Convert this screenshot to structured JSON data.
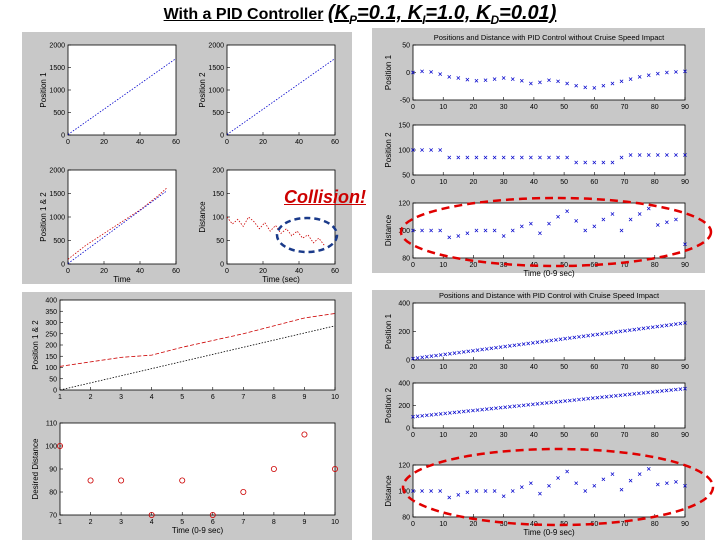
{
  "title": {
    "main": "With a PID Controller",
    "gains_open": "(K",
    "kp_sub": "P",
    "kp_val": "=0.1, K",
    "ki_sub": "I",
    "ki_val": "=1.0, K",
    "kd_sub": "D",
    "kd_val": "=0.01)"
  },
  "callout": {
    "text": "Collision!",
    "color": "#cc0000"
  },
  "colors": {
    "panel_bg": "#c8c8c8",
    "plot_bg": "#ffffff",
    "red": "#cc0000",
    "blue": "#0000cc",
    "highlight_red": "#e00000",
    "highlight_blue": "#1a3a8a"
  },
  "chart_data": [
    {
      "id": "tl1",
      "type": "line",
      "title": "",
      "xlabel": "",
      "ylabel": "Position 1",
      "xlim": [
        0,
        60
      ],
      "ylim": [
        0,
        2000
      ],
      "xticks": [
        0,
        20,
        40,
        60
      ],
      "yticks": [
        0,
        500,
        1000,
        1500,
        2000
      ],
      "series": [
        {
          "color": "blue",
          "style": "dotted",
          "x": [
            0,
            60
          ],
          "y": [
            10,
            1700
          ]
        }
      ]
    },
    {
      "id": "tl2",
      "type": "line",
      "title": "",
      "xlabel": "",
      "ylabel": "Position 2",
      "xlim": [
        0,
        60
      ],
      "ylim": [
        0,
        2000
      ],
      "xticks": [
        0,
        20,
        40,
        60
      ],
      "yticks": [
        0,
        500,
        1000,
        1500,
        2000
      ],
      "series": [
        {
          "color": "blue",
          "style": "dotted",
          "x": [
            0,
            60
          ],
          "y": [
            10,
            1700
          ]
        }
      ]
    },
    {
      "id": "tl3",
      "type": "line",
      "title": "",
      "xlabel": "Time",
      "ylabel": "Position 1 & 2",
      "xlim": [
        0,
        60
      ],
      "ylim": [
        0,
        2000
      ],
      "xticks": [
        0,
        20,
        40,
        60
      ],
      "yticks": [
        0,
        500,
        1000,
        1500,
        2000
      ],
      "series": [
        {
          "color": "red",
          "style": "dotted",
          "x": [
            0,
            10,
            20,
            30,
            40,
            50,
            55
          ],
          "y": [
            100,
            400,
            650,
            900,
            1150,
            1450,
            1620
          ]
        },
        {
          "color": "blue",
          "style": "dotted",
          "x": [
            0,
            55
          ],
          "y": [
            10,
            1560
          ]
        }
      ]
    },
    {
      "id": "tl4",
      "type": "line",
      "title": "",
      "xlabel": "Time (sec)",
      "ylabel": "Distance",
      "xlim": [
        0,
        60
      ],
      "ylim": [
        0,
        200
      ],
      "xticks": [
        0,
        20,
        40,
        60
      ],
      "yticks": [
        0,
        50,
        100,
        150,
        200
      ],
      "series": [
        {
          "color": "red",
          "style": "dotted",
          "x": [
            0,
            3,
            6,
            9,
            12,
            15,
            18,
            21,
            24,
            27,
            30,
            33,
            36,
            39,
            42,
            45,
            48,
            51,
            54
          ],
          "y": [
            100,
            85,
            95,
            80,
            100,
            90,
            75,
            88,
            70,
            82,
            65,
            75,
            60,
            70,
            55,
            62,
            45,
            55,
            40
          ]
        }
      ]
    },
    {
      "id": "tr1",
      "type": "scatter",
      "title": "Positions and Distance with PID Control without Cruise Speed Impact",
      "xlabel": "",
      "ylabel": "Position 1",
      "xlim": [
        0,
        90
      ],
      "ylim": [
        -50,
        50
      ],
      "xticks": [
        0,
        10,
        20,
        30,
        40,
        50,
        60,
        70,
        80,
        90
      ],
      "yticks": [
        -50,
        0,
        50
      ],
      "series": [
        {
          "color": "blue",
          "marker": "x",
          "x": [
            0,
            3,
            6,
            9,
            12,
            15,
            18,
            21,
            24,
            27,
            30,
            33,
            36,
            39,
            42,
            45,
            48,
            51,
            54,
            57,
            60,
            63,
            66,
            69,
            72,
            75,
            78,
            81,
            84,
            87,
            90
          ],
          "y": [
            0,
            2,
            1,
            -3,
            -8,
            -10,
            -13,
            -15,
            -14,
            -12,
            -10,
            -12,
            -15,
            -20,
            -18,
            -14,
            -16,
            -20,
            -24,
            -27,
            -28,
            -24,
            -20,
            -16,
            -12,
            -8,
            -5,
            -2,
            0,
            1,
            2
          ]
        }
      ]
    },
    {
      "id": "tr2",
      "type": "scatter",
      "title": "",
      "xlabel": "",
      "ylabel": "Position 2",
      "xlim": [
        0,
        90
      ],
      "ylim": [
        50,
        150
      ],
      "xticks": [
        0,
        10,
        20,
        30,
        40,
        50,
        60,
        70,
        80,
        90
      ],
      "yticks": [
        50,
        100,
        150
      ],
      "series": [
        {
          "color": "blue",
          "marker": "x",
          "x": [
            0,
            3,
            6,
            9,
            12,
            15,
            18,
            21,
            24,
            27,
            30,
            33,
            36,
            39,
            42,
            45,
            48,
            51,
            54,
            57,
            60,
            63,
            66,
            69,
            72,
            75,
            78,
            81,
            84,
            87,
            90
          ],
          "y": [
            100,
            100,
            100,
            100,
            85,
            85,
            85,
            85,
            85,
            85,
            85,
            85,
            85,
            85,
            85,
            85,
            85,
            85,
            75,
            75,
            75,
            75,
            75,
            85,
            90,
            90,
            90,
            90,
            90,
            90,
            90
          ]
        }
      ]
    },
    {
      "id": "tr3",
      "type": "scatter",
      "title": "",
      "xlabel": "Time (0-9 sec)",
      "ylabel": "Distance",
      "xlim": [
        0,
        90
      ],
      "ylim": [
        80,
        120
      ],
      "xticks": [
        0,
        10,
        20,
        30,
        40,
        50,
        60,
        70,
        80,
        90
      ],
      "yticks": [
        80,
        100,
        120
      ],
      "series": [
        {
          "color": "blue",
          "marker": "x",
          "x": [
            0,
            3,
            6,
            9,
            12,
            15,
            18,
            21,
            24,
            27,
            30,
            33,
            36,
            39,
            42,
            45,
            48,
            51,
            54,
            57,
            60,
            63,
            66,
            69,
            72,
            75,
            78,
            81,
            84,
            87,
            90
          ],
          "y": [
            100,
            100,
            100,
            100,
            95,
            96,
            98,
            100,
            100,
            100,
            96,
            100,
            103,
            105,
            98,
            105,
            110,
            114,
            107,
            100,
            103,
            108,
            112,
            100,
            108,
            112,
            116,
            104,
            106,
            108,
            90
          ]
        }
      ]
    },
    {
      "id": "bl1",
      "type": "line",
      "title": "",
      "xlabel": "",
      "ylabel": "Position 1 & 2",
      "xlim": [
        1,
        10
      ],
      "ylim": [
        0,
        400
      ],
      "xticks": [
        1,
        2,
        3,
        4,
        5,
        6,
        7,
        8,
        9,
        10
      ],
      "yticks": [
        0,
        50,
        100,
        150,
        200,
        250,
        300,
        350,
        400
      ],
      "series": [
        {
          "color": "red",
          "style": "dashed",
          "x": [
            1,
            2,
            3,
            4,
            5,
            6,
            7,
            8,
            9,
            10
          ],
          "y": [
            105,
            125,
            145,
            155,
            190,
            220,
            250,
            285,
            320,
            340
          ]
        },
        {
          "color": "black",
          "style": "dotted",
          "x": [
            1,
            10
          ],
          "y": [
            0,
            285
          ]
        }
      ]
    },
    {
      "id": "bl2",
      "type": "scatter",
      "title": "",
      "xlabel": "Time (0-9 sec)",
      "ylabel": "Desired Distance",
      "xlim": [
        1,
        10
      ],
      "ylim": [
        70,
        110
      ],
      "xticks": [
        1,
        2,
        3,
        4,
        5,
        6,
        7,
        8,
        9,
        10
      ],
      "yticks": [
        70,
        80,
        90,
        100,
        110
      ],
      "series": [
        {
          "color": "red",
          "marker": "o",
          "x": [
            1,
            2,
            3,
            4,
            5,
            6,
            7,
            8,
            9,
            10
          ],
          "y": [
            100,
            85,
            85,
            70,
            85,
            70,
            80,
            90,
            105,
            90
          ]
        }
      ]
    },
    {
      "id": "br1",
      "type": "scatter",
      "title": "Positions and Distance with PID Control with Cruise Speed Impact",
      "xlabel": "",
      "ylabel": "Position 1",
      "xlim": [
        0,
        90
      ],
      "ylim": [
        0,
        400
      ],
      "xticks": [
        0,
        10,
        20,
        30,
        40,
        50,
        60,
        70,
        80,
        90
      ],
      "yticks": [
        0,
        200,
        400
      ],
      "series": [
        {
          "color": "blue",
          "marker": "x",
          "x": [
            0,
            90
          ],
          "y": [
            10,
            260
          ],
          "npoints": 60
        }
      ]
    },
    {
      "id": "br2",
      "type": "scatter",
      "title": "",
      "xlabel": "",
      "ylabel": "Position 2",
      "xlim": [
        0,
        90
      ],
      "ylim": [
        0,
        400
      ],
      "xticks": [
        0,
        10,
        20,
        30,
        40,
        50,
        60,
        70,
        80,
        90
      ],
      "yticks": [
        0,
        200,
        400
      ],
      "series": [
        {
          "color": "blue",
          "marker": "x",
          "x": [
            0,
            90
          ],
          "y": [
            100,
            350
          ],
          "npoints": 60
        }
      ]
    },
    {
      "id": "br3",
      "type": "scatter",
      "title": "",
      "xlabel": "Time (0-9 sec)",
      "ylabel": "Distance",
      "xlim": [
        0,
        90
      ],
      "ylim": [
        80,
        120
      ],
      "xticks": [
        0,
        10,
        20,
        30,
        40,
        50,
        60,
        70,
        80,
        90
      ],
      "yticks": [
        80,
        100,
        120
      ],
      "series": [
        {
          "color": "blue",
          "marker": "x",
          "x": [
            0,
            3,
            6,
            9,
            12,
            15,
            18,
            21,
            24,
            27,
            30,
            33,
            36,
            39,
            42,
            45,
            48,
            51,
            54,
            57,
            60,
            63,
            66,
            69,
            72,
            75,
            78,
            81,
            84,
            87,
            90
          ],
          "y": [
            100,
            100,
            100,
            100,
            95,
            97,
            99,
            100,
            100,
            100,
            96,
            100,
            103,
            106,
            98,
            104,
            110,
            115,
            106,
            100,
            104,
            109,
            113,
            101,
            108,
            113,
            117,
            105,
            106,
            107,
            104
          ]
        }
      ]
    }
  ]
}
